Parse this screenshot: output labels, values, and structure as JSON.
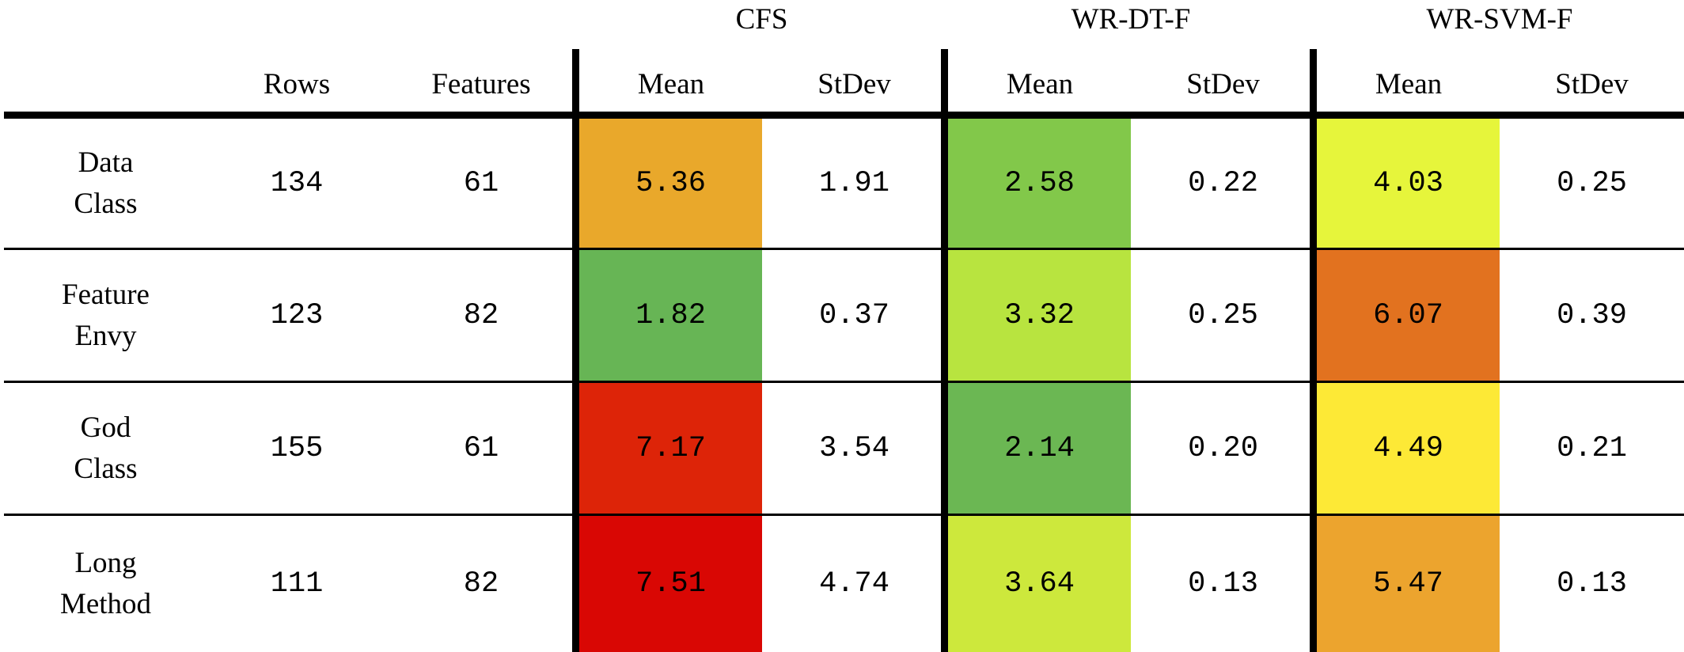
{
  "header": {
    "groups": [
      "CFS",
      "WR-DT-F",
      "WR-SVM-F"
    ],
    "columns": [
      "Rows",
      "Features",
      "Mean",
      "StDev",
      "Mean",
      "StDev",
      "Mean",
      "StDev"
    ]
  },
  "rows": [
    {
      "label": "Data\nClass",
      "rows": "134",
      "features": "61",
      "cfs_mean": "5.36",
      "cfs_stdev": "1.91",
      "dt_mean": "2.58",
      "dt_stdev": "0.22",
      "svm_mean": "4.03",
      "svm_stdev": "0.25",
      "colors": {
        "cfs_mean": "#e9a82b",
        "dt_mean": "#82c84a",
        "svm_mean": "#e6f53b"
      }
    },
    {
      "label": "Feature\nEnvy",
      "rows": "123",
      "features": "82",
      "cfs_mean": "1.82",
      "cfs_stdev": "0.37",
      "dt_mean": "3.32",
      "dt_stdev": "0.25",
      "svm_mean": "6.07",
      "svm_stdev": "0.39",
      "colors": {
        "cfs_mean": "#67b555",
        "dt_mean": "#b8e43f",
        "svm_mean": "#e2721f"
      }
    },
    {
      "label": "God\nClass",
      "rows": "155",
      "features": "61",
      "cfs_mean": "7.17",
      "cfs_stdev": "3.54",
      "dt_mean": "2.14",
      "dt_stdev": "0.20",
      "svm_mean": "4.49",
      "svm_stdev": "0.21",
      "colors": {
        "cfs_mean": "#dd2408",
        "dt_mean": "#6bb753",
        "svm_mean": "#fde936"
      }
    },
    {
      "label": "Long\nMethod",
      "rows": "111",
      "features": "82",
      "cfs_mean": "7.51",
      "cfs_stdev": "4.74",
      "dt_mean": "3.64",
      "dt_stdev": "0.13",
      "svm_mean": "5.47",
      "svm_stdev": "0.13",
      "colors": {
        "cfs_mean": "#d90704",
        "dt_mean": "#cde83c",
        "svm_mean": "#eca42e"
      }
    }
  ]
}
